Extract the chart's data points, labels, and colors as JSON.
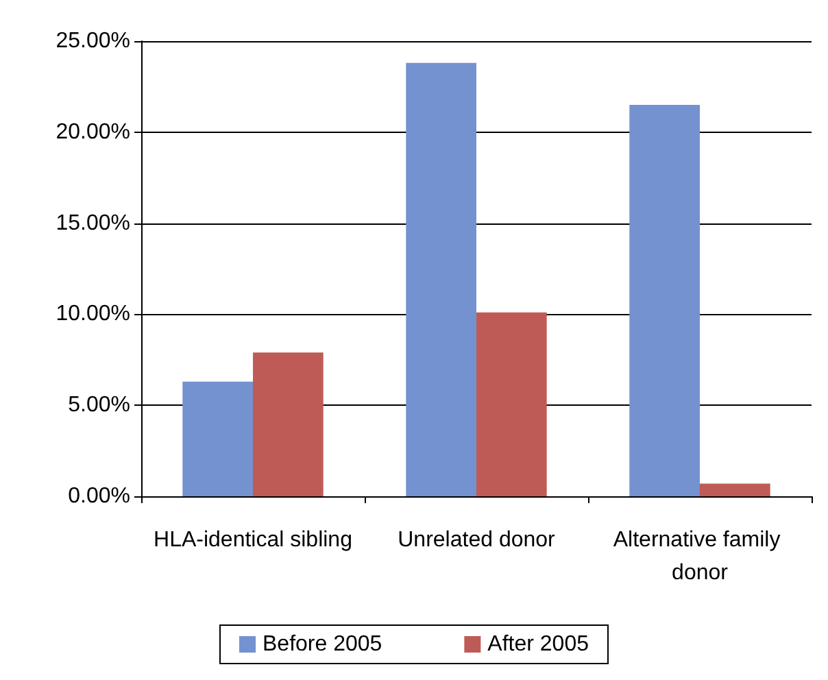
{
  "chart_data": {
    "type": "bar",
    "categories": [
      "HLA-identical sibling",
      "Unrelated donor",
      "Alternative family donor"
    ],
    "series": [
      {
        "name": "Before 2005",
        "color": "#7392cf",
        "values": [
          6.3,
          23.8,
          21.5
        ]
      },
      {
        "name": "After 2005",
        "color": "#bf5b56",
        "values": [
          7.9,
          10.1,
          0.7
        ]
      }
    ],
    "ylim": [
      0,
      25
    ],
    "yticks": [
      {
        "value": 0,
        "label": "0.00%"
      },
      {
        "value": 5,
        "label": "5.00%"
      },
      {
        "value": 10,
        "label": "10.00%"
      },
      {
        "value": 15,
        "label": "15.00%"
      },
      {
        "value": 20,
        "label": "20.00%"
      },
      {
        "value": 25,
        "label": "25.00%"
      }
    ],
    "grid": "y",
    "legend": "bottom"
  }
}
